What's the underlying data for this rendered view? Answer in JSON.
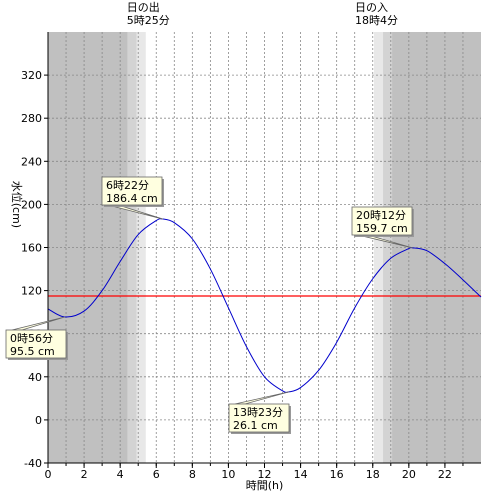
{
  "chart_data": {
    "type": "line",
    "xlabel": "時間(h)",
    "ylabel": "水位(cm)",
    "xlim": [
      0,
      24
    ],
    "ylim": [
      -40,
      360
    ],
    "x_ticks": [
      0,
      2,
      4,
      6,
      8,
      10,
      12,
      14,
      16,
      18,
      20,
      22
    ],
    "y_ticks": [
      -40,
      0,
      40,
      80,
      120,
      160,
      200,
      240,
      280,
      320
    ],
    "grid": true,
    "sunrise": {
      "label": "日の出",
      "time": "5時25分",
      "hour": 5.42
    },
    "sunset": {
      "label": "日の入",
      "time": "18時4分",
      "hour": 18.07
    },
    "reference_line": {
      "y": 115,
      "color": "#ff0000"
    },
    "series": [
      {
        "color": "#0000cc",
        "x": [
          0,
          0.93,
          2,
          3,
          4,
          5,
          6,
          6.37,
          7,
          8,
          9,
          10,
          11,
          12,
          13,
          13.38,
          14,
          15,
          16,
          17,
          18,
          19,
          20,
          20.2,
          21,
          22,
          23,
          24
        ],
        "y": [
          103,
          95.5,
          101,
          120,
          147,
          172,
          185,
          186.4,
          183,
          168,
          140,
          104,
          68,
          40,
          27,
          26.1,
          30,
          46,
          72,
          104,
          131,
          150,
          159,
          159.7,
          157,
          145,
          130,
          114
        ]
      }
    ],
    "annotations": [
      {
        "time": "0時56分",
        "value": "95.5 cm",
        "x": 0.93,
        "y": 95.5
      },
      {
        "time": "6時22分",
        "value": "186.4 cm",
        "x": 6.37,
        "y": 186.4
      },
      {
        "time": "13時23分",
        "value": "26.1 cm",
        "x": 13.38,
        "y": 26.1
      },
      {
        "time": "20時12分",
        "value": "159.7 cm",
        "x": 20.2,
        "y": 159.7
      }
    ]
  }
}
